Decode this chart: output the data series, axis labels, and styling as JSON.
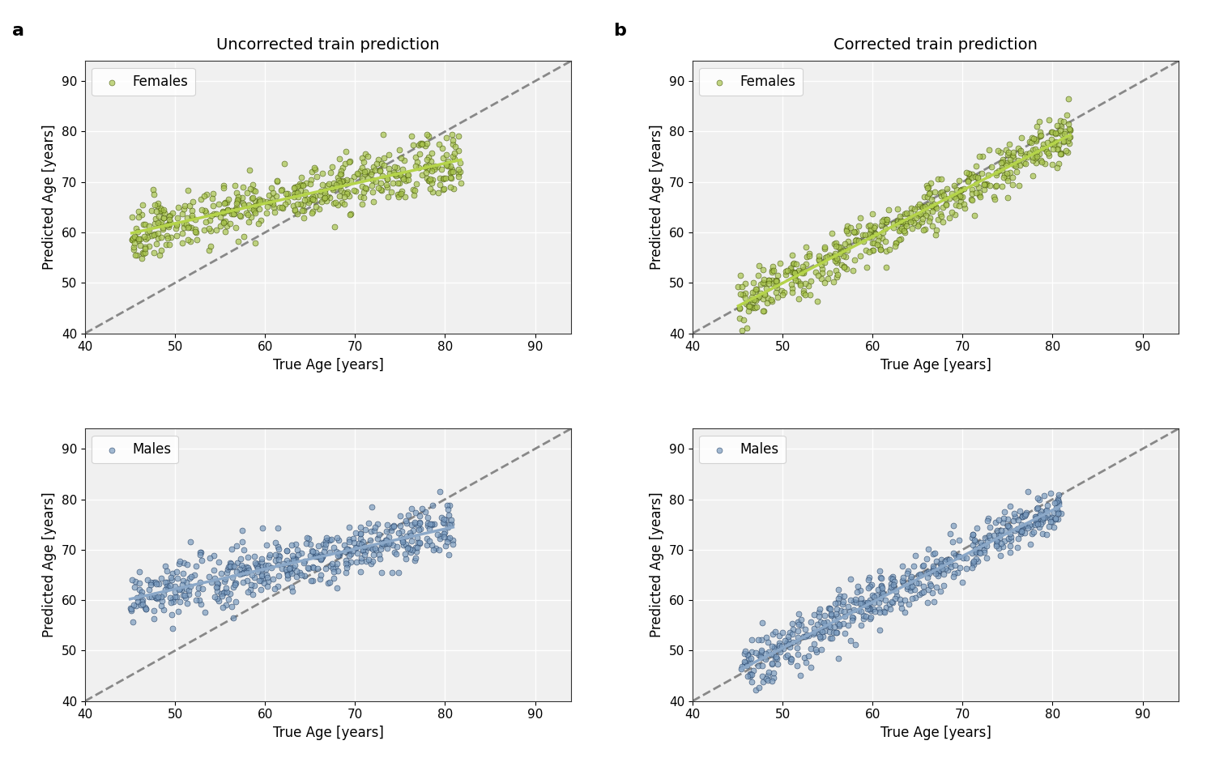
{
  "title_left": "Uncorrected train prediction",
  "title_right": "Corrected train prediction",
  "label_a": "a",
  "label_b": "b",
  "xlabel": "True Age [years]",
  "ylabel": "Predicted Age [years]",
  "xlim": [
    40,
    94
  ],
  "ylim": [
    40,
    94
  ],
  "xticks": [
    40,
    50,
    60,
    70,
    80,
    90
  ],
  "yticks": [
    40,
    50,
    60,
    70,
    80,
    90
  ],
  "female_color": "#a8c44e",
  "female_edge_color": "#3d4f00",
  "male_color": "#7b9cbf",
  "male_edge_color": "#1e3a5f",
  "female_line_color": "#b5d44a",
  "male_line_color": "#8ba8c8",
  "diag_color": "#888888",
  "background_color": "#f0f0f0",
  "legend_female": "Females",
  "legend_male": "Males",
  "seed_uncorr_female": 42,
  "seed_corr_female": 43,
  "seed_uncorr_male": 44,
  "seed_corr_male": 45,
  "n_points": 500,
  "marker_size": 25,
  "marker_alpha": 0.7,
  "line_width": 2.5,
  "title_fontsize": 14,
  "label_fontsize": 12,
  "tick_fontsize": 11,
  "panel_label_fontsize": 16
}
